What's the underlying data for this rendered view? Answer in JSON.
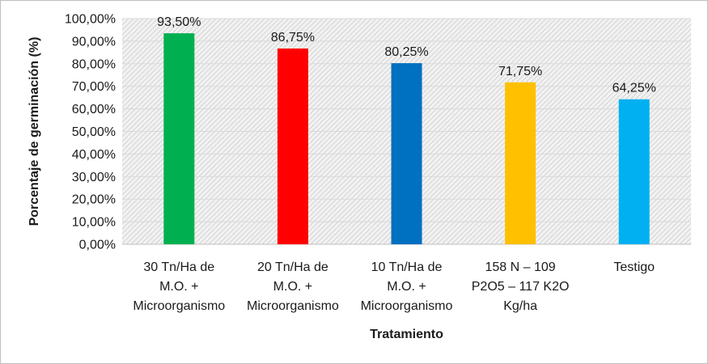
{
  "chart_data": {
    "type": "bar",
    "title": "",
    "xlabel": "Tratamiento",
    "ylabel": "Porcentaje de germinación (%)",
    "ylim": [
      0,
      100
    ],
    "y_ticks": [
      "0,00%",
      "10,00%",
      "20,00%",
      "30,00%",
      "40,00%",
      "50,00%",
      "60,00%",
      "70,00%",
      "80,00%",
      "90,00%",
      "100,00%"
    ],
    "grid": true,
    "legend": "none",
    "categories": [
      [
        "30 Tn/Ha de",
        "M.O. +",
        "Microorganismo"
      ],
      [
        "20 Tn/Ha de",
        "M.O. +",
        "Microorganismo"
      ],
      [
        "10 Tn/Ha de",
        "M.O. +",
        "Microorganismo"
      ],
      [
        "158 N – 109",
        "P2O5 – 117 K2O",
        "Kg/ha"
      ],
      [
        "Testigo"
      ]
    ],
    "values": [
      93.5,
      86.75,
      80.25,
      71.75,
      64.25
    ],
    "value_labels": [
      "93,50%",
      "86,75%",
      "80,25%",
      "71,75%",
      "64,25%"
    ],
    "colors": [
      "#00b050",
      "#ff0000",
      "#0070c0",
      "#ffc000",
      "#00b0f0"
    ]
  }
}
